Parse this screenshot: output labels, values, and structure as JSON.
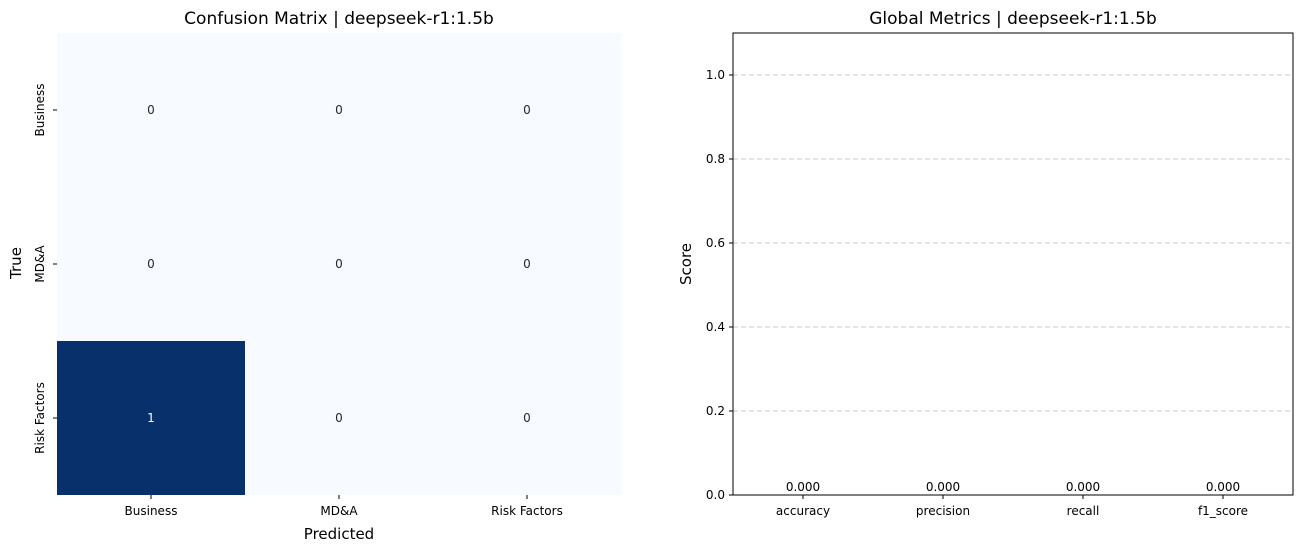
{
  "chart_data": [
    {
      "type": "heatmap",
      "title": "Confusion Matrix | deepseek-r1:1.5b",
      "xlabel": "Predicted",
      "ylabel": "True",
      "x_categories": [
        "Business",
        "MD&A",
        "Risk Factors"
      ],
      "y_categories": [
        "Business",
        "MD&A",
        "Risk Factors"
      ],
      "values": [
        [
          0,
          0,
          0
        ],
        [
          0,
          0,
          0
        ],
        [
          1,
          0,
          0
        ]
      ],
      "colormap": "Blues",
      "color_low": "#f7fbff",
      "color_high": "#08306b",
      "text_dark": "#262626",
      "text_light": "#ffffff",
      "colorbar": false
    },
    {
      "type": "bar",
      "title": "Global Metrics | deepseek-r1:1.5b",
      "xlabel": "",
      "ylabel": "Score",
      "categories": [
        "accuracy",
        "precision",
        "recall",
        "f1_score"
      ],
      "values": [
        0.0,
        0.0,
        0.0,
        0.0
      ],
      "value_labels": [
        "0.000",
        "0.000",
        "0.000",
        "0.000"
      ],
      "ylim": [
        0,
        1.1
      ],
      "yticks": [
        "0.0",
        "0.2",
        "0.4",
        "0.6",
        "0.8",
        "1.0"
      ],
      "grid": "y-dashed",
      "bar_color": "#4c72b0"
    }
  ]
}
